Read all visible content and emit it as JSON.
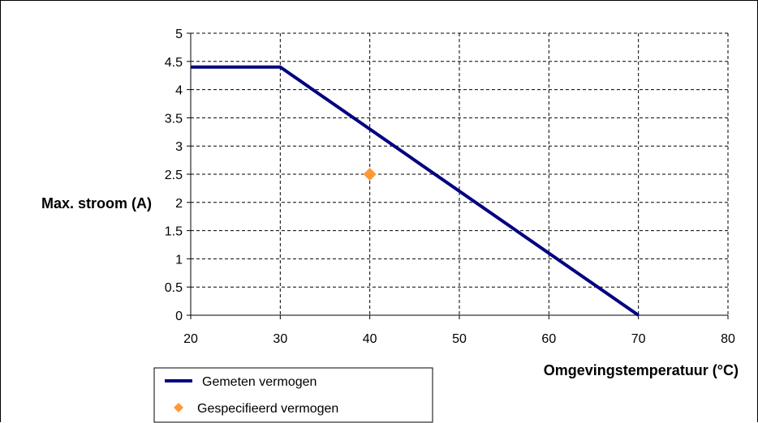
{
  "chart_data": {
    "type": "line",
    "xlabel": "Omgevingstemperatuur (°C)",
    "ylabel": "Max. stroom (A)",
    "xlim": [
      20,
      80
    ],
    "ylim": [
      0,
      5
    ],
    "x_ticks": [
      "20",
      "30",
      "40",
      "50",
      "60",
      "70",
      "80"
    ],
    "y_ticks": [
      "0",
      "0.5",
      "1",
      "1.5",
      "2",
      "2.5",
      "3",
      "3.5",
      "4",
      "4.5",
      "5"
    ],
    "grid": true,
    "legend_position": "bottom-left",
    "series": [
      {
        "name": "Gemeten vermogen",
        "kind": "line",
        "color": "#000080",
        "points": [
          [
            20,
            4.4
          ],
          [
            30,
            4.4
          ],
          [
            70,
            0
          ]
        ]
      },
      {
        "name": "Gespecifieerd vermogen",
        "kind": "marker",
        "marker": "diamond",
        "color": "#FF9933",
        "points": [
          [
            40,
            2.5
          ]
        ]
      }
    ]
  }
}
